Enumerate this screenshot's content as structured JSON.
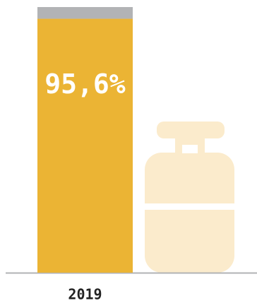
{
  "chart_data": {
    "type": "stacked-bar",
    "categories": [
      "2019"
    ],
    "series": [
      {
        "color": "#ebb434",
        "values": [
          95.6
        ],
        "value_labels": [
          "95,6%"
        ]
      },
      {
        "color": "#b2b3b5",
        "values": [
          4.4
        ]
      }
    ],
    "ylim": [
      0,
      100
    ]
  }
}
